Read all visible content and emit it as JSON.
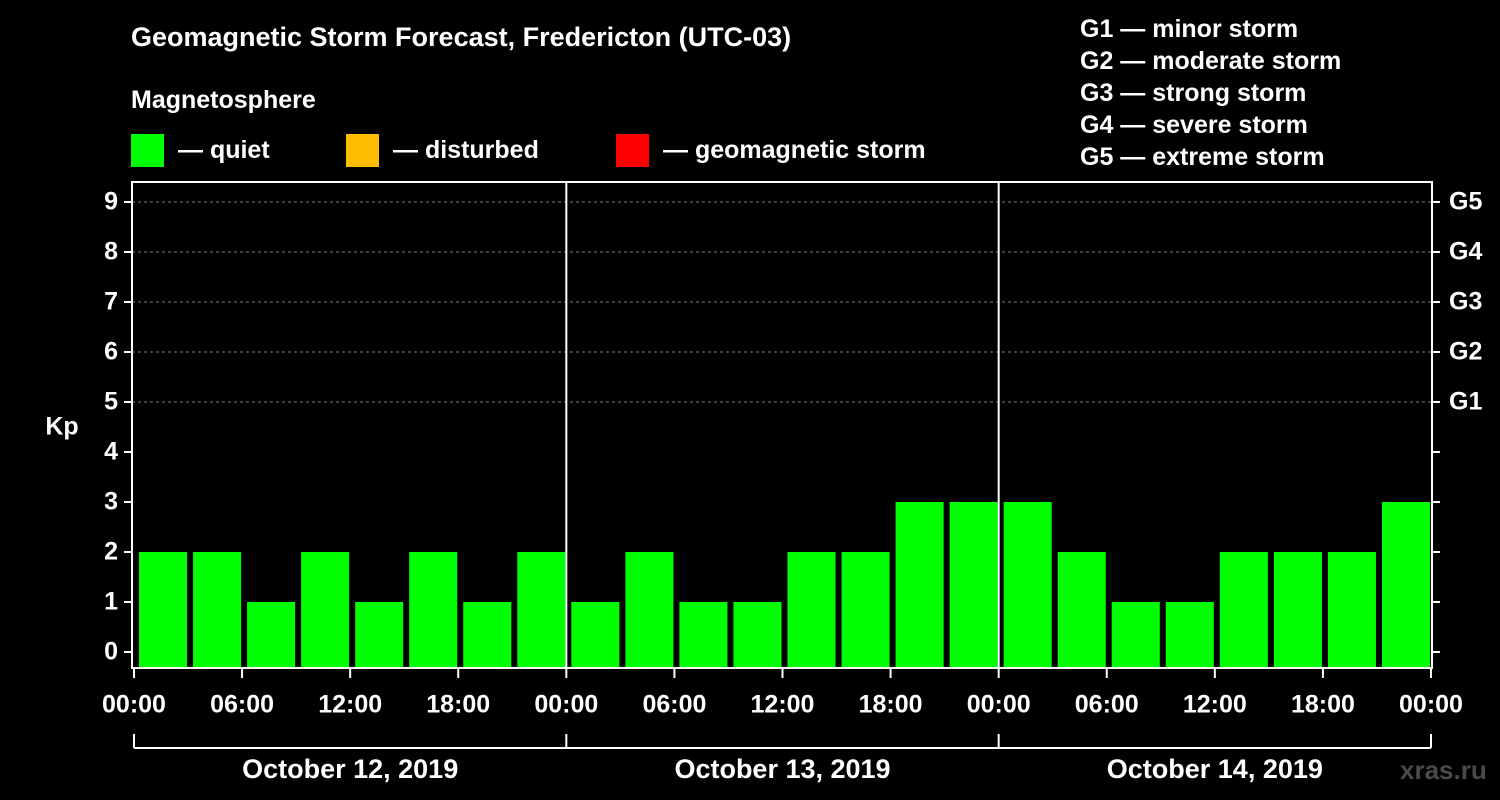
{
  "title": "Geomagnetic Storm Forecast, Fredericton (UTC-03)",
  "subtitle": "Magnetosphere",
  "legend": [
    {
      "label": "— quiet",
      "color": "#00ff00"
    },
    {
      "label": "— disturbed",
      "color": "#ffbf00"
    },
    {
      "label": "— geomagnetic storm",
      "color": "#ff0000"
    }
  ],
  "storm_scale": [
    "G1 — minor storm",
    "G2 — moderate storm",
    "G3 — strong storm",
    "G4 — severe storm",
    "G5 — extreme storm"
  ],
  "watermark": "xras.ru",
  "chart_data": {
    "type": "bar",
    "ylabel": "Kp",
    "ylim": [
      0,
      9
    ],
    "yticks": [
      0,
      1,
      2,
      3,
      4,
      5,
      6,
      7,
      8,
      9
    ],
    "right_axis_labels": [
      {
        "kp": 5,
        "label": "G1"
      },
      {
        "kp": 6,
        "label": "G2"
      },
      {
        "kp": 7,
        "label": "G3"
      },
      {
        "kp": 8,
        "label": "G4"
      },
      {
        "kp": 9,
        "label": "G5"
      }
    ],
    "xtick_labels": [
      "00:00",
      "06:00",
      "12:00",
      "18:00",
      "00:00",
      "06:00",
      "12:00",
      "18:00",
      "00:00",
      "06:00",
      "12:00",
      "18:00",
      "00:00"
    ],
    "days": [
      "October 12, 2019",
      "October 13, 2019",
      "October 14, 2019"
    ],
    "interval_hours": 3,
    "values": [
      2,
      2,
      1,
      2,
      1,
      2,
      1,
      2,
      1,
      2,
      1,
      1,
      2,
      2,
      3,
      3,
      3,
      2,
      1,
      1,
      2,
      2,
      2,
      3
    ],
    "bar_color": "#00ff00",
    "grid": true
  }
}
